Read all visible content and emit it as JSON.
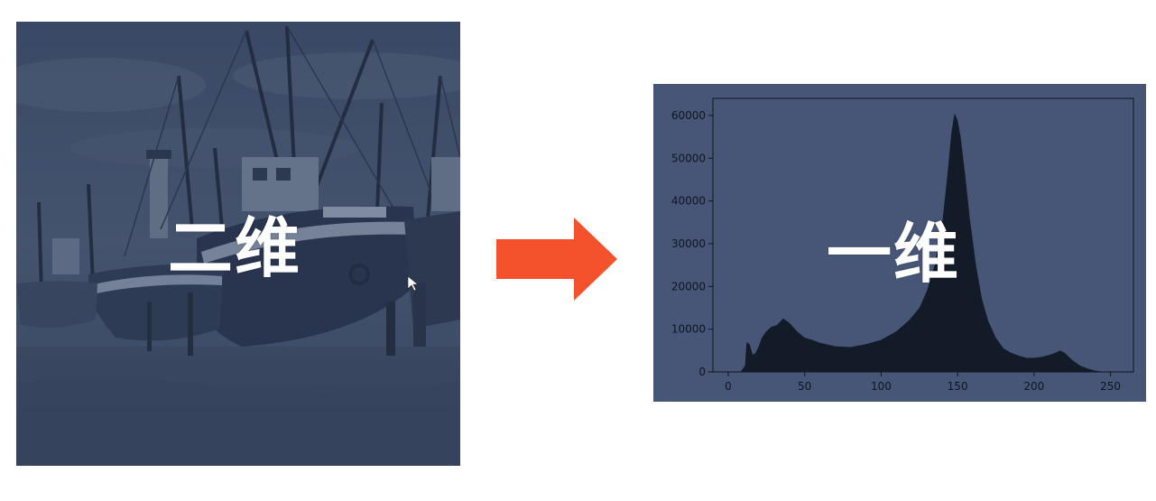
{
  "labels": {
    "left_overlay": "二维",
    "right_overlay": "一维"
  },
  "colors": {
    "photo_tint": "#2f3f5c",
    "arrow": "#f4522c",
    "hist_background": "#475677",
    "hist_fill": "#141b28"
  },
  "icons": {
    "arrow": "arrow-right-icon",
    "cursor": "mouse-cursor-icon"
  },
  "chart_data": {
    "type": "area",
    "title": "",
    "xlabel": "",
    "ylabel": "",
    "xlim": [
      -10,
      265
    ],
    "ylim": [
      0,
      64000
    ],
    "xticks": [
      0,
      50,
      100,
      150,
      200,
      250
    ],
    "yticks": [
      0,
      10000,
      20000,
      30000,
      40000,
      50000,
      60000
    ],
    "grid": false,
    "series": [
      {
        "x": [
          0,
          8,
          11,
          12,
          14,
          16,
          18,
          20,
          22,
          25,
          28,
          32,
          36,
          40,
          45,
          50,
          55,
          60,
          70,
          80,
          90,
          100,
          110,
          118,
          125,
          130,
          135,
          140,
          143,
          146,
          148,
          150,
          152,
          155,
          158,
          162,
          166,
          170,
          175,
          180,
          185,
          190,
          195,
          200,
          205,
          210,
          214,
          217,
          220,
          225,
          230,
          235,
          240,
          245,
          250,
          255
        ],
        "y": [
          0,
          0,
          1500,
          7000,
          6500,
          4000,
          4500,
          6000,
          8000,
          9500,
          10500,
          11000,
          12500,
          11500,
          9500,
          8000,
          7500,
          6800,
          6000,
          5800,
          6500,
          7500,
          9500,
          12000,
          15000,
          19000,
          25000,
          35000,
          45000,
          56000,
          60500,
          59000,
          55000,
          46000,
          36000,
          25000,
          17000,
          12000,
          8000,
          5500,
          4500,
          3800,
          3300,
          3300,
          3500,
          4000,
          4500,
          5000,
          4500,
          2800,
          1500,
          800,
          300,
          100,
          0,
          0
        ]
      }
    ]
  }
}
